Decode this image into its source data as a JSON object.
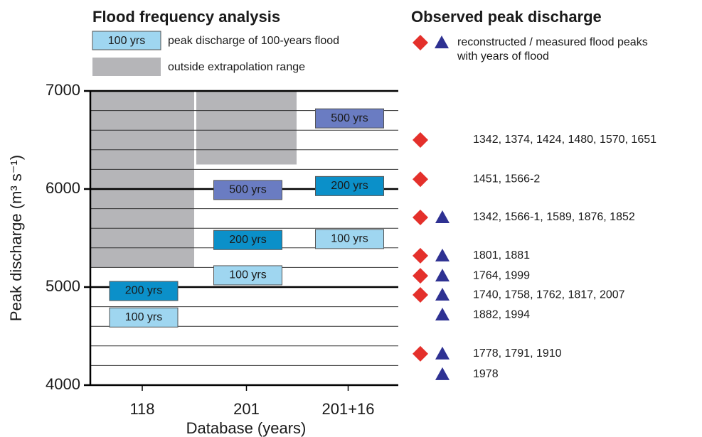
{
  "chart_data": {
    "type": "flood-frequency",
    "title": "Flood frequency analysis",
    "legend": [
      {
        "label": "100 yrs",
        "text": "peak discharge of 100-years flood",
        "color": "#9fd6f0"
      },
      {
        "text": "outside extrapolation range",
        "color": "#b5b5b8"
      }
    ],
    "y_label": "Peak discharge (m³ s⁻¹)",
    "x_label": "Database (years)",
    "categories": [
      "118",
      "201",
      "201+16"
    ],
    "ylim": [
      4000,
      7000
    ],
    "yticks": [
      4000,
      5000,
      6000,
      7000
    ],
    "minor_yticks": [
      4200,
      4400,
      4600,
      4800,
      5200,
      5400,
      5600,
      5800,
      6200,
      6400,
      6600,
      6800
    ],
    "extrapolation_limits": [
      5200,
      6250,
      null
    ],
    "series": [
      {
        "name": "500 yrs",
        "color": "#6a7cc2",
        "values": [
          null,
          5990,
          6720
        ]
      },
      {
        "name": "200 yrs",
        "color": "#0b90c9",
        "values": [
          4960,
          5480,
          6030
        ]
      },
      {
        "name": "100 yrs",
        "color": "#9fd6f0",
        "values": [
          4690,
          5120,
          5490
        ]
      }
    ],
    "observed": {
      "title": "Observed peak discharge",
      "legend_text": [
        "reconstructed / measured flood peaks",
        "with years of flood"
      ],
      "reconstructed_color": "#e4302b",
      "measured_color": "#2e3192",
      "events": [
        {
          "value": 6500,
          "label": "1342, 1374, 1424, 1480, 1570, 1651",
          "reconstructed": true,
          "measured": false
        },
        {
          "value": 6100,
          "label": "1451, 1566-2",
          "reconstructed": true,
          "measured": false
        },
        {
          "value": 5710,
          "label": "1342, 1566-1, 1589, 1876, 1852",
          "reconstructed": true,
          "measured": true
        },
        {
          "value": 5320,
          "label": "1801, 1881",
          "reconstructed": true,
          "measured": true
        },
        {
          "value": 5115,
          "label": "1764, 1999",
          "reconstructed": true,
          "measured": true
        },
        {
          "value": 4920,
          "label": "1740, 1758, 1762, 1817, 2007",
          "reconstructed": true,
          "measured": true
        },
        {
          "value": 4717,
          "label": "1882, 1994",
          "reconstructed": false,
          "measured": true
        },
        {
          "value": 4320,
          "label": "1778, 1791, 1910",
          "reconstructed": true,
          "measured": true
        },
        {
          "value": 4110,
          "label": "1978",
          "reconstructed": false,
          "measured": true
        }
      ]
    }
  }
}
